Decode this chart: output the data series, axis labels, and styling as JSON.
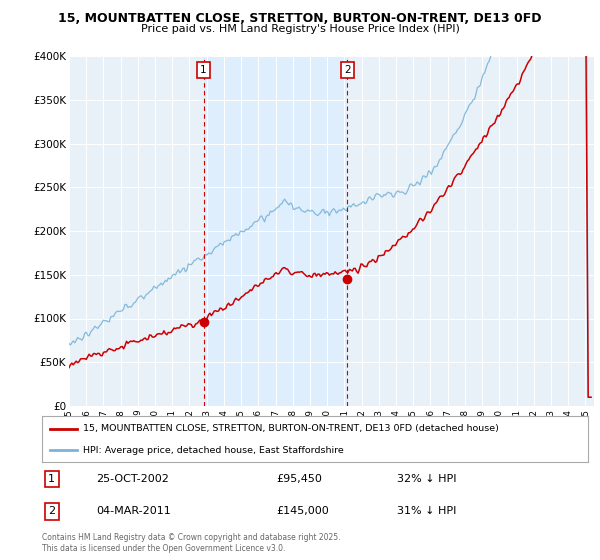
{
  "title": "15, MOUNTBATTEN CLOSE, STRETTON, BURTON-ON-TRENT, DE13 0FD",
  "subtitle": "Price paid vs. HM Land Registry's House Price Index (HPI)",
  "ylabel_ticks": [
    "£0",
    "£50K",
    "£100K",
    "£150K",
    "£200K",
    "£250K",
    "£300K",
    "£350K",
    "£400K"
  ],
  "ylim": [
    0,
    400000
  ],
  "xlim_start": 1995.0,
  "xlim_end": 2025.5,
  "hpi_color": "#7ab4d8",
  "price_color": "#cc0000",
  "shade_color": "#ddeeff",
  "marker1_x": 2002.82,
  "marker1_y": 95450,
  "marker2_x": 2011.17,
  "marker2_y": 145000,
  "marker1_date": "25-OCT-2002",
  "marker1_price": "£95,450",
  "marker1_hpi": "32% ↓ HPI",
  "marker2_date": "04-MAR-2011",
  "marker2_price": "£145,000",
  "marker2_hpi": "31% ↓ HPI",
  "legend_line1": "15, MOUNTBATTEN CLOSE, STRETTON, BURTON-ON-TRENT, DE13 0FD (detached house)",
  "legend_line2": "HPI: Average price, detached house, East Staffordshire",
  "copyright": "Contains HM Land Registry data © Crown copyright and database right 2025.\nThis data is licensed under the Open Government Licence v3.0.",
  "plot_bg_color": "#e8f0f8",
  "grid_color": "#ffffff"
}
